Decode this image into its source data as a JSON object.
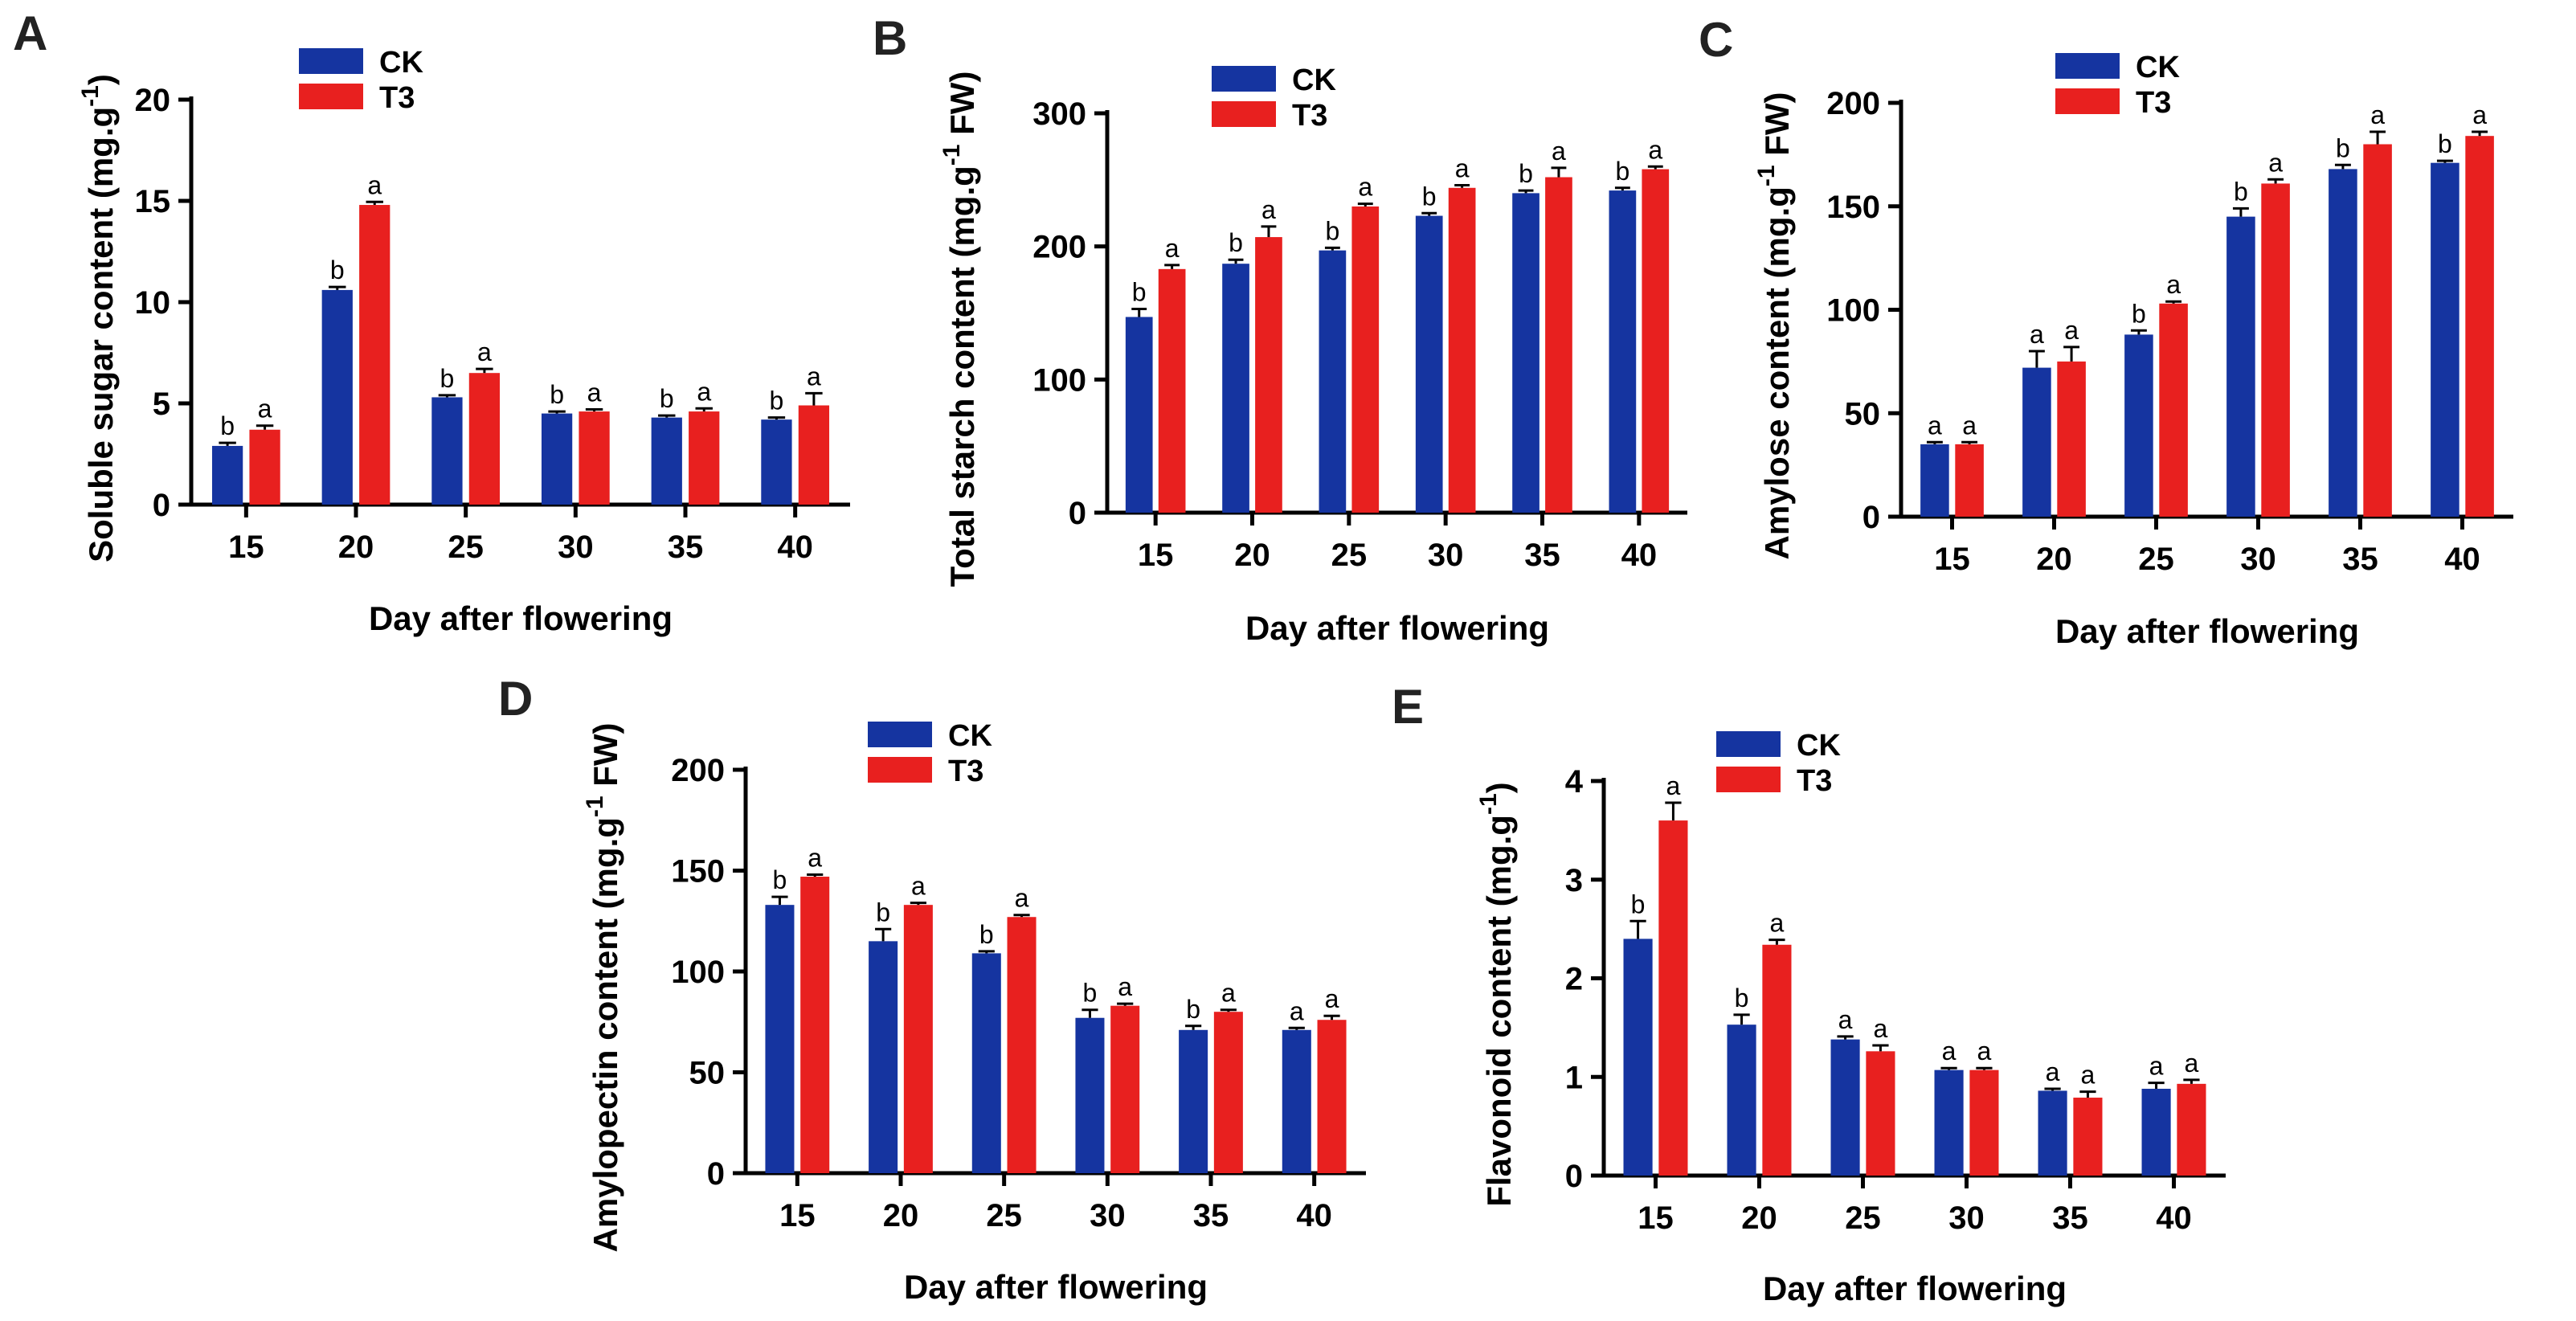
{
  "colors": {
    "CK": "#1534a0",
    "T3": "#e8201f",
    "axis": "#000000"
  },
  "legend": {
    "ck_label": "CK",
    "t3_label": "T3"
  },
  "chart_data": [
    {
      "panel": "A",
      "type": "bar",
      "title": "",
      "xlabel": "Day after flowering",
      "ylabel": "Soluble sugar content (mg.g",
      "ylabel_sup": "-1",
      "ylabel_end": ")",
      "categories": [
        "15",
        "20",
        "25",
        "30",
        "35",
        "40"
      ],
      "ylim": [
        0,
        20
      ],
      "yticks": [
        0,
        5,
        10,
        15,
        20
      ],
      "series": [
        {
          "name": "CK",
          "values": [
            2.9,
            10.6,
            5.3,
            4.5,
            4.3,
            4.2
          ],
          "errors": [
            0.15,
            0.15,
            0.1,
            0.1,
            0.1,
            0.1
          ],
          "labels": [
            "b",
            "b",
            "b",
            "b",
            "b",
            "b"
          ]
        },
        {
          "name": "T3",
          "values": [
            3.7,
            14.8,
            6.5,
            4.6,
            4.6,
            4.9
          ],
          "errors": [
            0.2,
            0.15,
            0.2,
            0.1,
            0.15,
            0.6
          ],
          "labels": [
            "a",
            "a",
            "a",
            "a",
            "a",
            "a"
          ]
        }
      ]
    },
    {
      "panel": "B",
      "type": "bar",
      "title": "",
      "xlabel": "Day after flowering",
      "ylabel": "Total starch content (mg.g",
      "ylabel_sup": "-1",
      "ylabel_end": " FW)",
      "categories": [
        "15",
        "20",
        "25",
        "30",
        "35",
        "40"
      ],
      "ylim": [
        0,
        300
      ],
      "yticks": [
        0,
        100,
        200,
        300
      ],
      "series": [
        {
          "name": "CK",
          "values": [
            147,
            187,
            197,
            223,
            240,
            242
          ],
          "errors": [
            6,
            3,
            2,
            2,
            2,
            2
          ],
          "labels": [
            "b",
            "b",
            "b",
            "b",
            "b",
            "b"
          ]
        },
        {
          "name": "T3",
          "values": [
            183,
            207,
            230,
            244,
            252,
            258
          ],
          "errors": [
            3,
            8,
            2,
            2,
            7,
            2
          ],
          "labels": [
            "a",
            "a",
            "a",
            "a",
            "a",
            "a"
          ]
        }
      ]
    },
    {
      "panel": "C",
      "type": "bar",
      "title": "",
      "xlabel": "Day after flowering",
      "ylabel": "Amylose content (mg.g",
      "ylabel_sup": "-1",
      "ylabel_end": " FW)",
      "categories": [
        "15",
        "20",
        "25",
        "30",
        "35",
        "40"
      ],
      "ylim": [
        0,
        200
      ],
      "yticks": [
        0,
        50,
        100,
        150,
        200
      ],
      "series": [
        {
          "name": "CK",
          "values": [
            35,
            72,
            88,
            145,
            168,
            171
          ],
          "errors": [
            1,
            8,
            2,
            4,
            2,
            1
          ],
          "labels": [
            "a",
            "a",
            "b",
            "b",
            "b",
            "b"
          ]
        },
        {
          "name": "T3",
          "values": [
            35,
            75,
            103,
            161,
            180,
            184
          ],
          "errors": [
            1,
            7,
            1,
            2,
            6,
            2
          ],
          "labels": [
            "a",
            "a",
            "a",
            "a",
            "a",
            "a"
          ]
        }
      ]
    },
    {
      "panel": "D",
      "type": "bar",
      "title": "",
      "xlabel": "Day after flowering",
      "ylabel": "Amylopectin  content (mg.g",
      "ylabel_sup": "-1",
      "ylabel_end": " FW)",
      "categories": [
        "15",
        "20",
        "25",
        "30",
        "35",
        "40"
      ],
      "ylim": [
        0,
        200
      ],
      "yticks": [
        0,
        50,
        100,
        150,
        200
      ],
      "series": [
        {
          "name": "CK",
          "values": [
            133,
            115,
            109,
            77,
            71,
            71
          ],
          "errors": [
            4,
            6,
            1,
            4,
            2,
            1
          ],
          "labels": [
            "b",
            "b",
            "b",
            "b",
            "b",
            "a"
          ]
        },
        {
          "name": "T3",
          "values": [
            147,
            133,
            127,
            83,
            80,
            76
          ],
          "errors": [
            1,
            1,
            1,
            1,
            1,
            2
          ],
          "labels": [
            "a",
            "a",
            "a",
            "a",
            "a",
            "a"
          ]
        }
      ]
    },
    {
      "panel": "E",
      "type": "bar",
      "title": "",
      "xlabel": "Day after flowering",
      "ylabel": "Flavonoid content (mg.g",
      "ylabel_sup": "-1",
      "ylabel_end": ")",
      "categories": [
        "15",
        "20",
        "25",
        "30",
        "35",
        "40"
      ],
      "ylim": [
        0,
        4
      ],
      "yticks": [
        0,
        1,
        2,
        3,
        4
      ],
      "series": [
        {
          "name": "CK",
          "values": [
            2.4,
            1.53,
            1.38,
            1.07,
            0.86,
            0.88
          ],
          "errors": [
            0.18,
            0.1,
            0.03,
            0.02,
            0.02,
            0.06
          ],
          "labels": [
            "b",
            "b",
            "a",
            "a",
            "a",
            "a"
          ]
        },
        {
          "name": "T3",
          "values": [
            3.6,
            2.34,
            1.26,
            1.07,
            0.79,
            0.93
          ],
          "errors": [
            0.18,
            0.05,
            0.06,
            0.02,
            0.06,
            0.04
          ],
          "labels": [
            "a",
            "a",
            "a",
            "a",
            "a",
            "a"
          ]
        }
      ]
    }
  ]
}
